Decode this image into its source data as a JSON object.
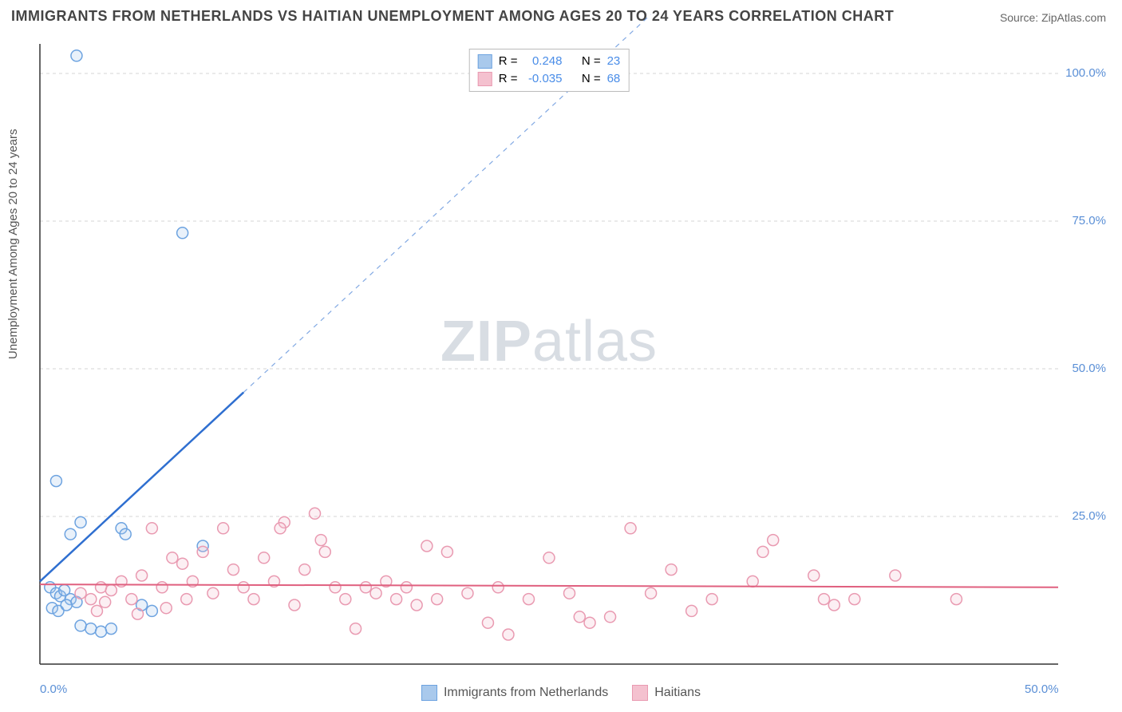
{
  "title": "IMMIGRANTS FROM NETHERLANDS VS HAITIAN UNEMPLOYMENT AMONG AGES 20 TO 24 YEARS CORRELATION CHART",
  "source": "Source: ZipAtlas.com",
  "ylabel": "Unemployment Among Ages 20 to 24 years",
  "watermark_zip": "ZIP",
  "watermark_atlas": "atlas",
  "chart": {
    "type": "scatter",
    "xlim": [
      0,
      50
    ],
    "ylim": [
      0,
      105
    ],
    "xticks": [
      {
        "v": 0,
        "label": "0.0%"
      },
      {
        "v": 50,
        "label": "50.0%"
      }
    ],
    "yticks": [
      {
        "v": 25,
        "label": "25.0%"
      },
      {
        "v": 50,
        "label": "50.0%"
      },
      {
        "v": 75,
        "label": "75.0%"
      },
      {
        "v": 100,
        "label": "100.0%"
      }
    ],
    "grid_color": "#d6d6d6",
    "axis_color": "#333333",
    "background": "#ffffff",
    "marker_radius": 7,
    "marker_stroke_width": 1.5,
    "marker_fill_opacity": 0.25,
    "series": [
      {
        "name": "Immigrants from Netherlands",
        "color_stroke": "#6da3e0",
        "color_fill": "#a9c9ec",
        "trend": {
          "x1": 0,
          "y1": 14,
          "x2": 10,
          "y2": 46,
          "dashed_to_x": 30,
          "dashed_to_y": 110,
          "stroke": "#2f6fd0",
          "width": 2.5
        },
        "R": "0.248",
        "N": "23",
        "points": [
          [
            1.8,
            103
          ],
          [
            7,
            73
          ],
          [
            0.8,
            31
          ],
          [
            1.5,
            22
          ],
          [
            2,
            24
          ],
          [
            4,
            23
          ],
          [
            4.2,
            22
          ],
          [
            8,
            20
          ],
          [
            0.5,
            13
          ],
          [
            0.8,
            12
          ],
          [
            1,
            11.5
          ],
          [
            1.2,
            12.5
          ],
          [
            1.5,
            11
          ],
          [
            1.8,
            10.5
          ],
          [
            0.6,
            9.5
          ],
          [
            0.9,
            9
          ],
          [
            1.3,
            10
          ],
          [
            2.5,
            6
          ],
          [
            3,
            5.5
          ],
          [
            2,
            6.5
          ],
          [
            3.5,
            6
          ],
          [
            5,
            10
          ],
          [
            5.5,
            9
          ]
        ]
      },
      {
        "name": "Haitians",
        "color_stroke": "#e99ab1",
        "color_fill": "#f4c1cf",
        "trend": {
          "x1": 0,
          "y1": 13.5,
          "x2": 50,
          "y2": 13,
          "stroke": "#e0607f",
          "width": 2
        },
        "R": "-0.035",
        "N": "68",
        "points": [
          [
            2,
            12
          ],
          [
            2.5,
            11
          ],
          [
            3,
            13
          ],
          [
            3.5,
            12.5
          ],
          [
            4,
            14
          ],
          [
            4.5,
            11
          ],
          [
            5,
            15
          ],
          [
            5.5,
            23
          ],
          [
            6,
            13
          ],
          [
            6.5,
            18
          ],
          [
            7,
            17
          ],
          [
            7.5,
            14
          ],
          [
            8,
            19
          ],
          [
            8.5,
            12
          ],
          [
            9,
            23
          ],
          [
            9.5,
            16
          ],
          [
            10,
            13
          ],
          [
            10.5,
            11
          ],
          [
            11,
            18
          ],
          [
            11.5,
            14
          ],
          [
            12,
            24
          ],
          [
            12.5,
            10
          ],
          [
            13,
            16
          ],
          [
            13.5,
            25.5
          ],
          [
            14,
            19
          ],
          [
            14.5,
            13
          ],
          [
            15,
            11
          ],
          [
            15.5,
            6
          ],
          [
            16,
            13
          ],
          [
            16.5,
            12
          ],
          [
            17,
            14
          ],
          [
            17.5,
            11
          ],
          [
            18,
            13
          ],
          [
            18.5,
            10
          ],
          [
            19,
            20
          ],
          [
            20,
            19
          ],
          [
            21,
            12
          ],
          [
            22,
            7
          ],
          [
            22.5,
            13
          ],
          [
            23,
            5
          ],
          [
            24,
            11
          ],
          [
            25,
            18
          ],
          [
            26,
            12
          ],
          [
            26.5,
            8
          ],
          [
            27,
            7
          ],
          [
            28,
            8
          ],
          [
            29,
            23
          ],
          [
            30,
            12
          ],
          [
            31,
            16
          ],
          [
            32,
            9
          ],
          [
            33,
            11
          ],
          [
            35,
            14
          ],
          [
            35.5,
            19
          ],
          [
            36,
            21
          ],
          [
            38,
            15
          ],
          [
            38.5,
            11
          ],
          [
            39,
            10
          ],
          [
            40,
            11
          ],
          [
            42,
            15
          ],
          [
            45,
            11
          ],
          [
            2.8,
            9
          ],
          [
            3.2,
            10.5
          ],
          [
            4.8,
            8.5
          ],
          [
            6.2,
            9.5
          ],
          [
            7.2,
            11
          ],
          [
            11.8,
            23
          ],
          [
            13.8,
            21
          ],
          [
            19.5,
            11
          ]
        ]
      }
    ]
  },
  "top_legend": {
    "R_label": "R =",
    "N_label": "N =",
    "value_color": "#4a8de8"
  }
}
